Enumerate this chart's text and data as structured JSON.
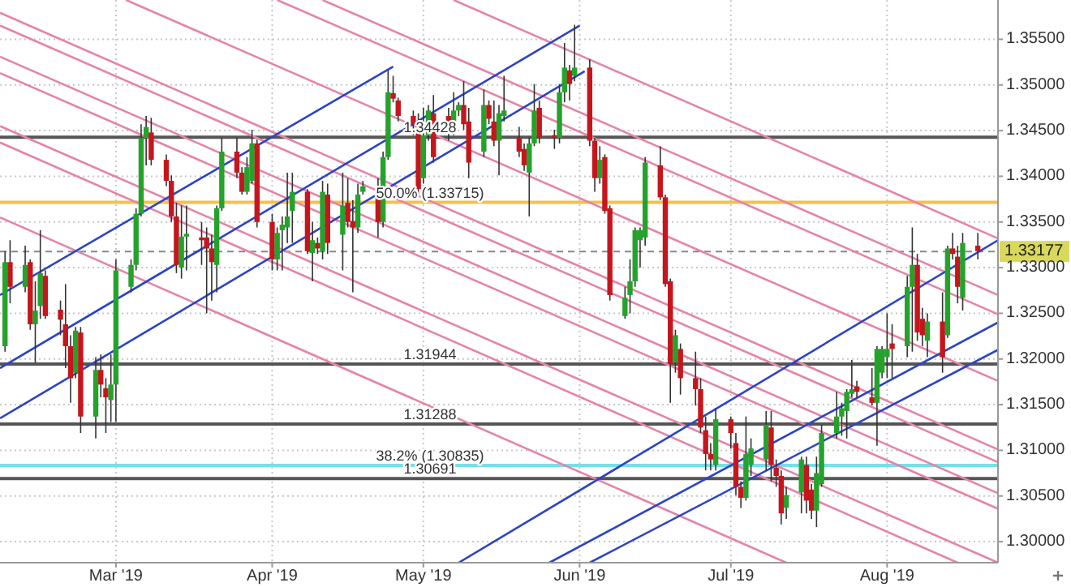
{
  "chart_data": {
    "type": "candlestick",
    "grid": true,
    "xlim": [
      "2019-02-06",
      "2019-08-23"
    ],
    "ylim": [
      1.2977,
      1.3593
    ],
    "xticks": [
      {
        "value": "2019-03-01",
        "label": "Mar '19"
      },
      {
        "value": "2019-04-01",
        "label": "Apr '19"
      },
      {
        "value": "2019-05-01",
        "label": "May '19"
      },
      {
        "value": "2019-06-01",
        "label": "Jun '19"
      },
      {
        "value": "2019-07-01",
        "label": "Jul '19"
      },
      {
        "value": "2019-08-01",
        "label": "Aug '19"
      }
    ],
    "yticks": [
      {
        "value": 1.3,
        "label": "1.30000"
      },
      {
        "value": 1.305,
        "label": "1.30500"
      },
      {
        "value": 1.31,
        "label": "1.31000"
      },
      {
        "value": 1.315,
        "label": "1.31500"
      },
      {
        "value": 1.32,
        "label": "1.32000"
      },
      {
        "value": 1.325,
        "label": "1.32500"
      },
      {
        "value": 1.33,
        "label": "1.33000"
      },
      {
        "value": 1.335,
        "label": "1.33500"
      },
      {
        "value": 1.34,
        "label": "1.34000"
      },
      {
        "value": 1.345,
        "label": "1.34500"
      },
      {
        "value": 1.35,
        "label": "1.35000"
      },
      {
        "value": 1.355,
        "label": "1.35500"
      }
    ],
    "x": [
      "2019-02-07",
      "2019-02-08",
      "2019-02-11",
      "2019-02-12",
      "2019-02-13",
      "2019-02-14",
      "2019-02-15",
      "2019-02-18",
      "2019-02-19",
      "2019-02-20",
      "2019-02-21",
      "2019-02-22",
      "2019-02-25",
      "2019-02-26",
      "2019-02-27",
      "2019-02-28",
      "2019-03-01",
      "2019-03-04",
      "2019-03-05",
      "2019-03-06",
      "2019-03-07",
      "2019-03-08",
      "2019-03-11",
      "2019-03-12",
      "2019-03-13",
      "2019-03-14",
      "2019-03-15",
      "2019-03-18",
      "2019-03-19",
      "2019-03-20",
      "2019-03-21",
      "2019-03-22",
      "2019-03-25",
      "2019-03-26",
      "2019-03-27",
      "2019-03-28",
      "2019-03-29",
      "2019-04-01",
      "2019-04-02",
      "2019-04-03",
      "2019-04-04",
      "2019-04-05",
      "2019-04-08",
      "2019-04-09",
      "2019-04-10",
      "2019-04-11",
      "2019-04-12",
      "2019-04-15",
      "2019-04-16",
      "2019-04-17",
      "2019-04-18",
      "2019-04-19",
      "2019-04-22",
      "2019-04-23",
      "2019-04-24",
      "2019-04-25",
      "2019-04-26",
      "2019-04-29",
      "2019-04-30",
      "2019-05-01",
      "2019-05-02",
      "2019-05-03",
      "2019-05-06",
      "2019-05-07",
      "2019-05-08",
      "2019-05-09",
      "2019-05-10",
      "2019-05-13",
      "2019-05-14",
      "2019-05-15",
      "2019-05-16",
      "2019-05-17",
      "2019-05-20",
      "2019-05-21",
      "2019-05-22",
      "2019-05-23",
      "2019-05-24",
      "2019-05-27",
      "2019-05-28",
      "2019-05-29",
      "2019-05-30",
      "2019-05-31",
      "2019-06-03",
      "2019-06-04",
      "2019-06-05",
      "2019-06-06",
      "2019-06-07",
      "2019-06-10",
      "2019-06-11",
      "2019-06-12",
      "2019-06-13",
      "2019-06-14",
      "2019-06-17",
      "2019-06-18",
      "2019-06-19",
      "2019-06-20",
      "2019-06-21",
      "2019-06-24",
      "2019-06-25",
      "2019-06-26",
      "2019-06-27",
      "2019-06-28",
      "2019-07-01",
      "2019-07-02",
      "2019-07-03",
      "2019-07-04",
      "2019-07-05",
      "2019-07-08",
      "2019-07-09",
      "2019-07-10",
      "2019-07-11",
      "2019-07-12",
      "2019-07-15",
      "2019-07-16",
      "2019-07-17",
      "2019-07-18",
      "2019-07-19",
      "2019-07-22",
      "2019-07-23",
      "2019-07-24",
      "2019-07-25",
      "2019-07-26",
      "2019-07-29",
      "2019-07-30",
      "2019-07-31",
      "2019-08-01",
      "2019-08-02",
      "2019-08-05",
      "2019-08-06",
      "2019-08-07",
      "2019-08-08",
      "2019-08-09",
      "2019-08-12",
      "2019-08-13",
      "2019-08-14",
      "2019-08-15",
      "2019-08-16",
      "2019-08-19"
    ],
    "ohlc": [
      [
        1.3214,
        1.3318,
        1.3208,
        1.3306
      ],
      [
        1.3306,
        1.333,
        1.3261,
        1.3279
      ],
      [
        1.3279,
        1.3324,
        1.3273,
        1.3303
      ],
      [
        1.3306,
        1.3309,
        1.3232,
        1.3238
      ],
      [
        1.3238,
        1.3285,
        1.3196,
        1.3253
      ],
      [
        1.3258,
        1.3341,
        1.3244,
        1.3294
      ],
      [
        1.3291,
        1.3297,
        1.3244,
        1.3247
      ],
      [
        1.3254,
        1.3264,
        1.3226,
        1.3243
      ],
      [
        1.3238,
        1.3282,
        1.319,
        1.3214
      ],
      [
        1.3214,
        1.3226,
        1.3152,
        1.3179
      ],
      [
        1.3185,
        1.3235,
        1.3179,
        1.3231
      ],
      [
        1.3229,
        1.3235,
        1.3119,
        1.3137
      ],
      [
        1.3137,
        1.3202,
        1.3113,
        1.3188
      ],
      [
        1.3188,
        1.3205,
        1.3158,
        1.3172
      ],
      [
        1.3168,
        1.3179,
        1.3119,
        1.3158
      ],
      [
        1.3155,
        1.3205,
        1.3131,
        1.3172
      ],
      [
        1.3172,
        1.3309,
        1.3131,
        1.3297
      ],
      [
        1.3279,
        1.3309,
        1.3273,
        1.3303
      ],
      [
        1.3303,
        1.3365,
        1.3297,
        1.3359
      ],
      [
        1.3359,
        1.3457,
        1.3356,
        1.3442
      ],
      [
        1.3442,
        1.3466,
        1.3412,
        1.3454
      ],
      [
        1.3448,
        1.3464,
        1.3412,
        1.3418
      ],
      [
        1.3418,
        1.3424,
        1.3389,
        1.3395
      ],
      [
        1.3395,
        1.3401,
        1.335,
        1.3356
      ],
      [
        1.3356,
        1.3371,
        1.3294,
        1.3303
      ],
      [
        1.33,
        1.3368,
        1.3288,
        1.3334
      ],
      [
        1.3334,
        1.3368,
        1.3297,
        1.3337
      ],
      [
        1.3333,
        1.335,
        1.3303,
        1.333
      ],
      [
        1.3333,
        1.3344,
        1.325,
        1.3321
      ],
      [
        1.3321,
        1.3336,
        1.3264,
        1.3306
      ],
      [
        1.3303,
        1.3368,
        1.3273,
        1.3365
      ],
      [
        1.3365,
        1.3442,
        1.3362,
        1.3427
      ],
      [
        1.3427,
        1.3442,
        1.3398,
        1.3404
      ],
      [
        1.3404,
        1.341,
        1.338,
        1.3383
      ],
      [
        1.3383,
        1.3421,
        1.338,
        1.341
      ],
      [
        1.3395,
        1.3451,
        1.3392,
        1.3436
      ],
      [
        1.3436,
        1.344,
        1.3344,
        1.335
      ],
      [
        1.335,
        1.3359,
        1.3297,
        1.3309
      ],
      [
        1.3309,
        1.3344,
        1.3297,
        1.3338
      ],
      [
        1.3341,
        1.3356,
        1.3297,
        1.3347
      ],
      [
        1.3344,
        1.3404,
        1.3327,
        1.3356
      ],
      [
        1.3362,
        1.3404,
        1.3327,
        1.3383
      ],
      [
        1.3383,
        1.3386,
        1.3315,
        1.3318
      ],
      [
        1.3316,
        1.335,
        1.3285,
        1.333
      ],
      [
        1.3327,
        1.3333,
        1.3315,
        1.3321
      ],
      [
        1.3318,
        1.3395,
        1.3309,
        1.3383
      ],
      [
        1.338,
        1.3392,
        1.3315,
        1.3327
      ],
      [
        1.3336,
        1.3404,
        1.3297,
        1.3368
      ],
      [
        1.3371,
        1.3398,
        1.3344,
        1.335
      ],
      [
        1.3351,
        1.3374,
        1.3273,
        1.3344
      ],
      [
        1.3344,
        1.3392,
        1.3338,
        1.338
      ],
      [
        1.3383,
        1.3395,
        1.338,
        1.3389
      ],
      [
        1.3383,
        1.3398,
        1.3333,
        1.335
      ],
      [
        1.335,
        1.3427,
        1.3344,
        1.3421
      ],
      [
        1.3421,
        1.3516,
        1.3418,
        1.3492
      ],
      [
        1.3491,
        1.351,
        1.3481,
        1.3485
      ],
      [
        1.3483,
        1.3486,
        1.346,
        1.3466
      ],
      [
        1.3466,
        1.3472,
        1.3445,
        1.3457
      ],
      [
        1.3457,
        1.3469,
        1.338,
        1.3386
      ],
      [
        1.3398,
        1.3475,
        1.3392,
        1.3445
      ],
      [
        1.3445,
        1.3478,
        1.3439,
        1.3472
      ],
      [
        1.3469,
        1.3489,
        1.3415,
        1.3421
      ],
      [
        1.3466,
        1.3475,
        1.3439,
        1.3448
      ],
      [
        1.3451,
        1.3492,
        1.3445,
        1.3472
      ],
      [
        1.3472,
        1.3481,
        1.3466,
        1.3478
      ],
      [
        1.3478,
        1.3504,
        1.3451,
        1.3457
      ],
      [
        1.346,
        1.3475,
        1.3398,
        1.3415
      ],
      [
        1.3427,
        1.3495,
        1.3421,
        1.3478
      ],
      [
        1.3478,
        1.3483,
        1.3457,
        1.3463
      ],
      [
        1.346,
        1.3483,
        1.3433,
        1.3439
      ],
      [
        1.3439,
        1.3478,
        1.3401,
        1.3469
      ],
      [
        1.3466,
        1.351,
        1.346,
        1.3472
      ],
      [
        1.3442,
        1.3454,
        1.3421,
        1.3427
      ],
      [
        1.343,
        1.3436,
        1.3406,
        1.3412
      ],
      [
        1.3404,
        1.3442,
        1.3356,
        1.3436
      ],
      [
        1.3436,
        1.3501,
        1.3433,
        1.3472
      ],
      [
        1.3475,
        1.3483,
        1.3436,
        1.3442
      ],
      [
        1.3445,
        1.3451,
        1.343,
        1.3442
      ],
      [
        1.3442,
        1.3501,
        1.3436,
        1.3492
      ],
      [
        1.3492,
        1.3546,
        1.3481,
        1.3519
      ],
      [
        1.3516,
        1.3522,
        1.3483,
        1.3501
      ],
      [
        1.351,
        1.3566,
        1.3504,
        1.3519
      ],
      [
        1.3519,
        1.3528,
        1.3433,
        1.3439
      ],
      [
        1.3439,
        1.3442,
        1.3383,
        1.3398
      ],
      [
        1.3398,
        1.3433,
        1.3392,
        1.3418
      ],
      [
        1.3421,
        1.3424,
        1.3359,
        1.3362
      ],
      [
        1.3365,
        1.3368,
        1.3264,
        1.327
      ],
      [
        1.3247,
        1.3279,
        1.3244,
        1.3267
      ],
      [
        1.327,
        1.3309,
        1.325,
        1.3285
      ],
      [
        1.3285,
        1.3344,
        1.3279,
        1.3341
      ],
      [
        1.333,
        1.3344,
        1.33,
        1.3341
      ],
      [
        1.3333,
        1.3421,
        1.3324,
        1.3415
      ],
      [
        1.3412,
        1.3433,
        1.3374,
        1.3377
      ],
      [
        1.3377,
        1.338,
        1.3279,
        1.3282
      ],
      [
        1.3285,
        1.3288,
        1.3152,
        1.3195
      ],
      [
        1.3196,
        1.3232,
        1.3185,
        1.3226
      ],
      [
        1.3211,
        1.3217,
        1.3161,
        1.3179
      ],
      [
        1.3179,
        1.3208,
        1.3149,
        1.3167
      ],
      [
        1.3167,
        1.3179,
        1.3119,
        1.3125
      ],
      [
        1.3122,
        1.3137,
        1.3078,
        1.3096
      ],
      [
        1.3096,
        1.3108,
        1.3078,
        1.309
      ],
      [
        1.3084,
        1.3146,
        1.3078,
        1.3134
      ],
      [
        1.3134,
        1.3137,
        1.3102,
        1.3119
      ],
      [
        1.3108,
        1.3119,
        1.3051,
        1.306
      ],
      [
        1.306,
        1.3066,
        1.3037,
        1.3048
      ],
      [
        1.3048,
        1.3137,
        1.3045,
        1.3096
      ],
      [
        1.3084,
        1.3113,
        1.3072,
        1.3102
      ],
      [
        1.309,
        1.3143,
        1.3078,
        1.3128
      ],
      [
        1.3125,
        1.3143,
        1.3066,
        1.3084
      ],
      [
        1.3081,
        1.309,
        1.306,
        1.3072
      ],
      [
        1.3072,
        1.3078,
        1.3019,
        1.3031
      ],
      [
        1.3037,
        1.306,
        1.3025,
        1.3051
      ],
      [
        1.3054,
        1.3093,
        1.3031,
        1.309
      ],
      [
        1.3084,
        1.3093,
        1.3031,
        1.3045
      ],
      [
        1.3057,
        1.3063,
        1.3025,
        1.3034
      ],
      [
        1.3034,
        1.3093,
        1.3016,
        1.3075
      ],
      [
        1.3063,
        1.3128,
        1.306,
        1.3119
      ],
      [
        1.3119,
        1.3164,
        1.3113,
        1.3137
      ],
      [
        1.3137,
        1.3152,
        1.3116,
        1.3146
      ],
      [
        1.3143,
        1.3167,
        1.3113,
        1.3164
      ],
      [
        1.3162,
        1.3199,
        1.3158,
        1.3167
      ],
      [
        1.317,
        1.3176,
        1.3158,
        1.3164
      ],
      [
        1.3158,
        1.319,
        1.3149,
        1.3152
      ],
      [
        1.3152,
        1.3214,
        1.3105,
        1.3211
      ],
      [
        1.3185,
        1.3214,
        1.3179,
        1.3211
      ],
      [
        1.3202,
        1.325,
        1.3179,
        1.3211
      ],
      [
        1.3217,
        1.3238,
        1.3179,
        1.3211
      ],
      [
        1.3214,
        1.3291,
        1.3202,
        1.3279
      ],
      [
        1.3279,
        1.3344,
        1.3208,
        1.3303
      ],
      [
        1.3303,
        1.3315,
        1.322,
        1.3229
      ],
      [
        1.3244,
        1.3256,
        1.3214,
        1.3226
      ],
      [
        1.322,
        1.325,
        1.3202,
        1.3241
      ],
      [
        1.3241,
        1.3273,
        1.3185,
        1.3202
      ],
      [
        1.3226,
        1.3324,
        1.3223,
        1.3321
      ],
      [
        1.3321,
        1.3338,
        1.3309,
        1.3315
      ],
      [
        1.3312,
        1.3324,
        1.3261,
        1.3279
      ],
      [
        1.3267,
        1.3338,
        1.3253,
        1.3327
      ],
      [
        1.3324,
        1.3338,
        1.3309,
        1.3318
      ]
    ],
    "series": [
      {
        "type": "line",
        "color": "#e584a8",
        "x": [
          "2019-05-07",
          "2019-08-23"
        ],
        "values": [
          1.3593,
          1.3332
        ]
      },
      {
        "type": "line",
        "color": "#e584a8",
        "x": [
          "2019-04-11",
          "2019-08-23"
        ],
        "values": [
          1.3593,
          1.327
        ]
      },
      {
        "type": "line",
        "color": "#e584a8",
        "x": [
          "2019-04-02",
          "2019-08-23"
        ],
        "values": [
          1.3593,
          1.3249
        ]
      },
      {
        "type": "line",
        "color": "#e584a8",
        "x": [
          "2019-03-03",
          "2019-08-23"
        ],
        "values": [
          1.3593,
          1.3176
        ]
      },
      {
        "type": "line",
        "color": "#e584a8",
        "x": [
          "2019-02-06",
          "2019-08-23"
        ],
        "values": [
          1.3579,
          1.3101
        ]
      },
      {
        "type": "line",
        "color": "#e584a8",
        "x": [
          "2019-02-06",
          "2019-08-23"
        ],
        "values": [
          1.3565,
          1.3087
        ]
      },
      {
        "type": "line",
        "color": "#e584a8",
        "x": [
          "2019-02-06",
          "2019-08-23"
        ],
        "values": [
          1.3531,
          1.3053
        ]
      },
      {
        "type": "line",
        "color": "#e584a8",
        "x": [
          "2019-02-06",
          "2019-08-23"
        ],
        "values": [
          1.3513,
          1.3036
        ]
      },
      {
        "type": "line",
        "color": "#e584a8",
        "x": [
          "2019-02-06",
          "2019-08-23"
        ],
        "values": [
          1.3455,
          1.2977
        ]
      },
      {
        "type": "line",
        "color": "#e584a8",
        "x": [
          "2019-02-06",
          "2019-08-15"
        ],
        "values": [
          1.3437,
          1.2977
        ]
      },
      {
        "type": "line",
        "color": "#e584a8",
        "x": [
          "2019-02-06",
          "2019-07-12"
        ],
        "values": [
          1.3355,
          1.2977
        ]
      },
      {
        "type": "line",
        "color": "#2b44c4",
        "x": [
          "2019-02-06",
          "2019-04-25"
        ],
        "values": [
          1.327,
          1.352
        ]
      },
      {
        "type": "line",
        "color": "#2b44c4",
        "x": [
          "2019-02-06",
          "2019-06-01"
        ],
        "values": [
          1.319,
          1.3565
        ]
      },
      {
        "type": "line",
        "color": "#2b44c4",
        "x": [
          "2019-02-06",
          "2019-06-02"
        ],
        "values": [
          1.3135,
          1.3515
        ]
      },
      {
        "type": "line",
        "color": "#2b44c4",
        "x": [
          "2019-05-08",
          "2019-08-23"
        ],
        "values": [
          1.2977,
          1.333
        ]
      },
      {
        "type": "line",
        "color": "#2b44c4",
        "x": [
          "2019-05-26",
          "2019-08-23"
        ],
        "values": [
          1.2977,
          1.324
        ]
      },
      {
        "type": "line",
        "color": "#2b44c4",
        "x": [
          "2019-06-03",
          "2019-08-23"
        ],
        "values": [
          1.2977,
          1.321
        ]
      }
    ],
    "ref_lines": [
      {
        "axis": "y",
        "value": 1.34428,
        "label": "1.34428",
        "color": "#555555"
      },
      {
        "axis": "y",
        "value": 1.33715,
        "label": "50.0% (1.33715)",
        "color": "#f5c04a"
      },
      {
        "axis": "y",
        "value": 1.33177,
        "label": "1.33177",
        "color": "#888888",
        "line_style": "dashed"
      },
      {
        "axis": "y",
        "value": 1.31944,
        "label": "1.31944",
        "color": "#555555"
      },
      {
        "axis": "y",
        "value": 1.31288,
        "label": "1.31288",
        "color": "#555555"
      },
      {
        "axis": "y",
        "value": 1.30835,
        "label": "38.2% (1.30835)",
        "color": "#79dfe6"
      },
      {
        "axis": "y",
        "value": 1.30691,
        "label": "1.30691",
        "color": "#555555"
      }
    ]
  }
}
